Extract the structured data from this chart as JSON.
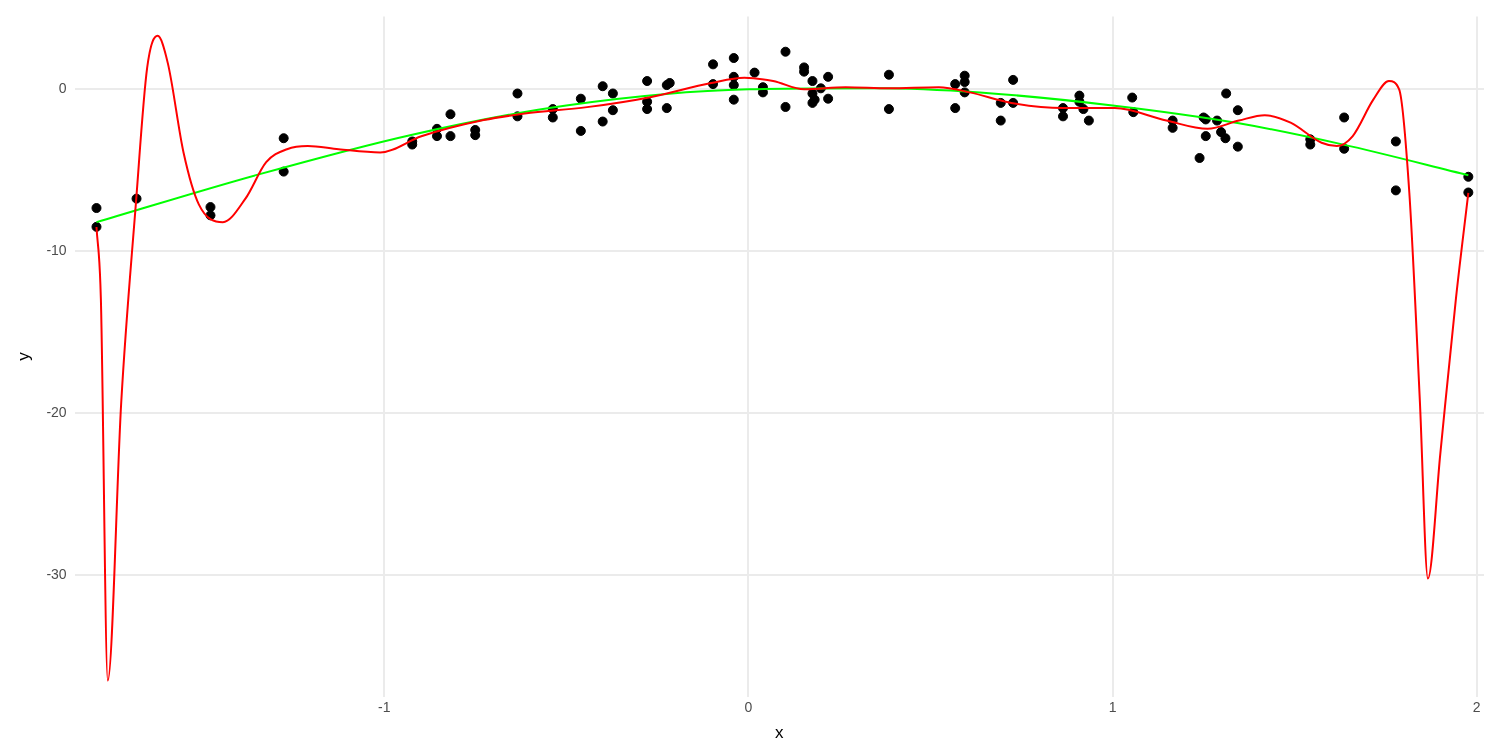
{
  "chart_data": {
    "type": "scatter",
    "xlabel": "x",
    "ylabel": "y",
    "xlim": [
      -1.85,
      2.02
    ],
    "ylim": [
      -37.5,
      4.5
    ],
    "xticks": [
      -1,
      0,
      1,
      2
    ],
    "yticks": [
      -30,
      -20,
      -10,
      0
    ],
    "grid": true,
    "legend": false,
    "marker": "circle",
    "series": [
      {
        "color": "#000000",
        "x": [
          -1.79,
          -1.79,
          -1.68,
          -1.477,
          -1.477,
          -1.276,
          -1.276,
          -0.923,
          -0.923,
          -0.855,
          -0.855,
          -0.818,
          -0.818,
          -0.75,
          -0.75,
          -0.634,
          -0.634,
          -0.537,
          -0.537,
          -0.46,
          -0.46,
          -0.4,
          -0.4,
          -0.372,
          -0.372,
          -0.278,
          -0.278,
          -0.278,
          -0.224,
          -0.224,
          -0.216,
          -0.097,
          -0.097,
          -0.04,
          -0.04,
          -0.04,
          -0.04,
          0.017,
          0.04,
          0.04,
          0.102,
          0.102,
          0.153,
          0.153,
          0.176,
          0.176,
          0.176,
          0.182,
          0.199,
          0.219,
          0.219,
          0.386,
          0.386,
          0.568,
          0.568,
          0.594,
          0.594,
          0.594,
          0.693,
          0.693,
          0.727,
          0.727,
          0.864,
          0.864,
          0.909,
          0.909,
          0.92,
          0.935,
          1.054,
          1.057,
          1.165,
          1.165,
          1.239,
          1.25,
          1.256,
          1.256,
          1.287,
          1.298,
          1.31,
          1.312,
          1.344,
          1.344,
          1.543,
          1.543,
          1.636,
          1.636,
          1.778,
          1.778,
          1.977,
          1.977
        ],
        "values": [
          -7.33,
          -8.49,
          -6.75,
          -7.27,
          -7.78,
          -3.02,
          -5.08,
          -3.22,
          -3.41,
          -2.44,
          -2.89,
          -1.54,
          -2.89,
          -2.51,
          -2.83,
          -0.26,
          -1.67,
          -1.22,
          -1.74,
          -0.58,
          -2.57,
          0.19,
          -1.99,
          -0.26,
          -1.29,
          0.51,
          -0.77,
          -1.22,
          0.26,
          -1.16,
          0.39,
          1.54,
          0.32,
          1.93,
          0.77,
          0.26,
          -0.64,
          1.03,
          0.13,
          -0.19,
          2.32,
          -1.09,
          1.35,
          1.09,
          0.51,
          -0.26,
          -0.84,
          -0.64,
          0.06,
          0.77,
          -0.58,
          0.9,
          -1.22,
          0.32,
          -1.16,
          0.84,
          0.45,
          -0.19,
          -1.93,
          -0.84,
          0.58,
          -0.84,
          -1.16,
          -1.67,
          -0.39,
          -0.77,
          -1.22,
          -1.93,
          -0.51,
          -1.41,
          -1.93,
          -2.38,
          -4.24,
          -1.74,
          -1.86,
          -2.89,
          -1.93,
          -2.64,
          -3.02,
          -0.26,
          -1.29,
          -3.54,
          -3.09,
          -3.41,
          -1.74,
          -3.67,
          -3.22,
          -6.24,
          -5.4,
          -6.37
        ]
      },
      {
        "type": "line",
        "marker": "none",
        "color": "#ff0000",
        "x": [
          -1.79,
          -1.778,
          -1.759,
          -1.722,
          -1.682,
          -1.651,
          -1.622,
          -1.594,
          -1.551,
          -1.509,
          -1.443,
          -1.381,
          -1.324,
          -1.267,
          -1.21,
          -1.125,
          -1.011,
          -0.898,
          -0.727,
          -0.614,
          -0.443,
          -0.273,
          -0.102,
          -0.011,
          0.068,
          0.153,
          0.267,
          0.386,
          0.523,
          0.608,
          0.722,
          0.864,
          1.006,
          1.148,
          1.261,
          1.347,
          1.418,
          1.489,
          1.574,
          1.616,
          1.659,
          1.716,
          1.759,
          1.787,
          1.815,
          1.844,
          1.866,
          1.9,
          1.943,
          1.977
        ],
        "values": [
          -8.5,
          -12.9,
          -36.5,
          -19.3,
          -7.1,
          1.3,
          3.3,
          1.6,
          -3.9,
          -7.1,
          -8.2,
          -6.75,
          -4.5,
          -3.7,
          -3.5,
          -3.7,
          -3.9,
          -2.9,
          -1.9,
          -1.5,
          -1.1,
          -0.5,
          0.39,
          0.71,
          0.51,
          0,
          0.13,
          0.06,
          0.13,
          -0.19,
          -0.84,
          -1.16,
          -1.16,
          -1.93,
          -2.44,
          -1.93,
          -1.6,
          -2.06,
          -3.3,
          -3.5,
          -2.9,
          -0.64,
          0.51,
          0,
          -6.4,
          -19.3,
          -30.2,
          -22.5,
          -12.9,
          -6.4
        ]
      },
      {
        "type": "line",
        "marker": "none",
        "color": "#00ff00",
        "x": [
          -1.79,
          -1.352,
          -0.923,
          -0.5,
          0,
          0.352,
          0.636,
          1,
          1.347,
          1.631,
          1.977
        ],
        "values": [
          -8.2,
          -5.3,
          -2.8,
          -1.0,
          0,
          0.06,
          -0.2,
          -1.0,
          -2.1,
          -3.4,
          -5.3
        ]
      }
    ]
  }
}
